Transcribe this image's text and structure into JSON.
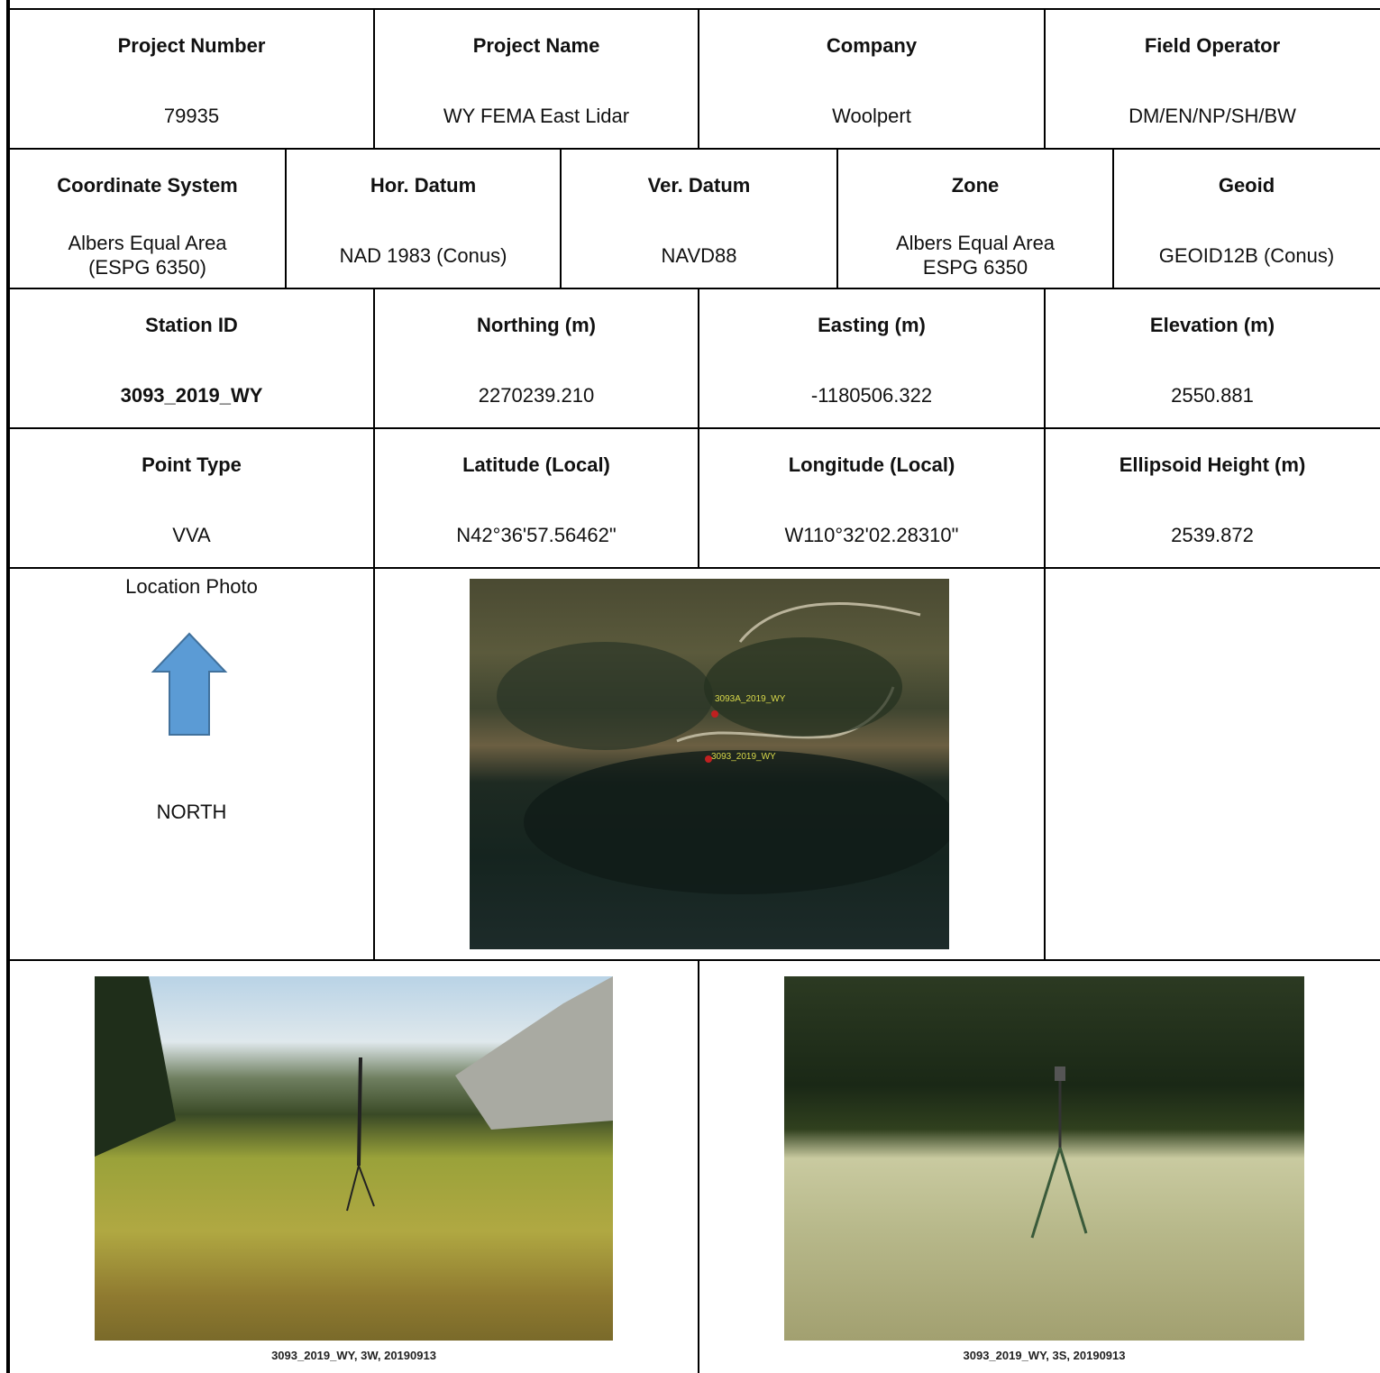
{
  "project": {
    "headers": [
      "Project Number",
      "Project Name",
      "Company",
      "Field Operator"
    ],
    "values": [
      "79935",
      "WY FEMA East Lidar",
      "Woolpert",
      "DM/EN/NP/SH/BW"
    ]
  },
  "datum": {
    "headers": [
      "Coordinate System",
      "Hor. Datum",
      "Ver. Datum",
      "Zone",
      "Geoid"
    ],
    "values": [
      "Albers Equal Area\n(ESPG 6350)",
      "NAD 1983 (Conus)",
      "NAVD88",
      "Albers Equal Area\nESPG 6350",
      "GEOID12B (Conus)"
    ]
  },
  "station": {
    "headers": [
      "Station ID",
      "Northing (m)",
      "Easting (m)",
      "Elevation (m)"
    ],
    "values": [
      "3093_2019_WY",
      "2270239.210",
      "-1180506.322",
      "2550.881"
    ]
  },
  "point": {
    "headers": [
      "Point Type",
      "Latitude (Local)",
      "Longitude (Local)",
      "Ellipsoid Height (m)"
    ],
    "values": [
      "VVA",
      "N42°36'57.56462\"",
      "W110°32'02.28310\"",
      "2539.872"
    ]
  },
  "location": {
    "label": "Location Photo",
    "direction": "NORTH",
    "map_labels": [
      "3093A_2019_WY",
      "3093_2019_WY"
    ]
  },
  "photos": [
    {
      "caption": "3093_2019_WY, 3W, 20190913"
    },
    {
      "caption": "3093_2019_WY, 3S, 20190913"
    }
  ]
}
